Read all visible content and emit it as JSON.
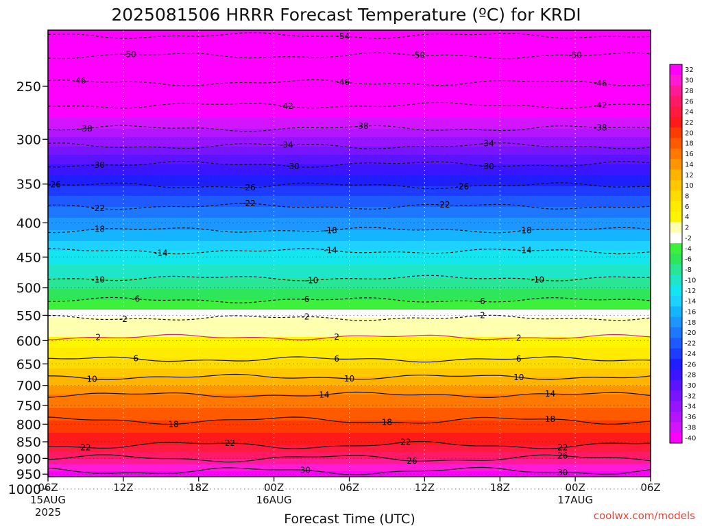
{
  "chart_data": {
    "type": "heatmap",
    "title": "2025081506 HRRR Forecast Temperature (ºC) for KRDI",
    "xlabel": "Forecast Time (UTC)",
    "credit": "coolwx.com/models",
    "x_ticks": [
      {
        "hour": 0,
        "label": "06Z",
        "sub": "15AUG",
        "sub2": "2025"
      },
      {
        "hour": 6,
        "label": "12Z",
        "sub": "",
        "sub2": ""
      },
      {
        "hour": 12,
        "label": "18Z",
        "sub": "",
        "sub2": ""
      },
      {
        "hour": 18,
        "label": "00Z",
        "sub": "16AUG",
        "sub2": ""
      },
      {
        "hour": 24,
        "label": "06Z",
        "sub": "",
        "sub2": ""
      },
      {
        "hour": 30,
        "label": "12Z",
        "sub": "",
        "sub2": ""
      },
      {
        "hour": 36,
        "label": "18Z",
        "sub": "",
        "sub2": ""
      },
      {
        "hour": 42,
        "label": "00Z",
        "sub": "17AUG",
        "sub2": ""
      },
      {
        "hour": 48,
        "label": "06Z",
        "sub": "",
        "sub2": ""
      }
    ],
    "x_range_hours": [
      0,
      48
    ],
    "y_axis": {
      "label": "",
      "scale": "log-pressure",
      "range_hpa": [
        1040,
        200
      ],
      "ticks": [
        250,
        300,
        350,
        400,
        450,
        500,
        550,
        600,
        650,
        700,
        750,
        800,
        850,
        900,
        950,
        1000
      ]
    },
    "ground_level_hpa": 970,
    "colorbar": {
      "levels": [
        32,
        30,
        28,
        26,
        24,
        22,
        20,
        18,
        16,
        14,
        12,
        10,
        8,
        6,
        4,
        2,
        -2,
        -4,
        -6,
        -8,
        -10,
        -12,
        -14,
        -16,
        -18,
        -20,
        -22,
        -24,
        -26,
        -28,
        -30,
        -32,
        -34,
        -36,
        -38,
        -40
      ],
      "colors": [
        "#ff00ff",
        "#ff1ad6",
        "#ff1a96",
        "#ff1a66",
        "#ff1a40",
        "#ff1a1a",
        "#ff3c00",
        "#ff5a00",
        "#ff7800",
        "#ff9600",
        "#ffb400",
        "#ffc800",
        "#ffdc00",
        "#ffeb00",
        "#fff500",
        "#ffffb0",
        "#ffffff",
        "#3cf03c",
        "#2ee65a",
        "#28e696",
        "#1ee6c8",
        "#14e6f0",
        "#1ed2ff",
        "#14b4ff",
        "#1e96ff",
        "#1e78ff",
        "#1e5aff",
        "#1e3cff",
        "#1e1eff",
        "#3c14ff",
        "#5a14ff",
        "#7814ff",
        "#9614ff",
        "#b414ff",
        "#d214ff",
        "#ff00ff"
      ]
    },
    "contours": [
      {
        "value": -54,
        "pressure_hpa": 210,
        "label_hours": [
          23.5
        ],
        "dashed": true
      },
      {
        "value": -50,
        "pressure_hpa": 225,
        "label_hours": [
          6.5,
          29.5,
          42.0
        ],
        "dashed": true
      },
      {
        "value": -46,
        "pressure_hpa": 247,
        "label_hours": [
          2.5,
          23.5,
          44.0
        ],
        "dashed": true
      },
      {
        "value": -42,
        "pressure_hpa": 267,
        "label_hours": [
          19.0,
          44.0
        ],
        "dashed": true
      },
      {
        "value": -38,
        "pressure_hpa": 289,
        "label_hours": [
          3.0,
          25.0,
          44.0
        ],
        "dashed": true
      },
      {
        "value": -34,
        "pressure_hpa": 307,
        "label_hours": [
          19.0,
          35.0
        ],
        "dashed": true
      },
      {
        "value": -30,
        "pressure_hpa": 327,
        "label_hours": [
          4.0,
          19.5,
          35.0
        ],
        "dashed": true
      },
      {
        "value": -26,
        "pressure_hpa": 352,
        "label_hours": [
          0.5,
          16.0,
          33.0
        ],
        "dashed": true
      },
      {
        "value": -22,
        "pressure_hpa": 378,
        "label_hours": [
          4.0,
          16.0,
          31.5
        ],
        "dashed": true
      },
      {
        "value": -18,
        "pressure_hpa": 410,
        "label_hours": [
          4.0,
          22.5,
          38.0
        ],
        "dashed": true
      },
      {
        "value": -14,
        "pressure_hpa": 441,
        "label_hours": [
          9.0,
          22.5,
          38.0
        ],
        "dashed": true
      },
      {
        "value": -10,
        "pressure_hpa": 484,
        "label_hours": [
          4.0,
          21.0,
          39.0
        ],
        "dashed": true
      },
      {
        "value": -6,
        "pressure_hpa": 522,
        "label_hours": [
          7.0,
          20.5,
          34.5
        ],
        "dashed": true
      },
      {
        "value": -2,
        "pressure_hpa": 555,
        "label_hours": [
          6.0,
          20.5,
          34.5
        ],
        "dashed": true
      },
      {
        "value": 2,
        "pressure_hpa": 593,
        "label_hours": [
          4.0,
          23.0,
          37.5
        ],
        "dashed": false
      },
      {
        "value": 6,
        "pressure_hpa": 640,
        "label_hours": [
          7.0,
          23.0,
          37.5
        ],
        "dashed": false
      },
      {
        "value": 10,
        "pressure_hpa": 680,
        "label_hours": [
          3.5,
          24.0,
          37.5
        ],
        "dashed": false
      },
      {
        "value": 14,
        "pressure_hpa": 723,
        "label_hours": [
          22.0,
          40.0
        ],
        "dashed": false
      },
      {
        "value": 18,
        "pressure_hpa": 790,
        "label_hours": [
          10.0,
          27.0,
          40.0
        ],
        "dashed": false
      },
      {
        "value": 22,
        "pressure_hpa": 860,
        "label_hours": [
          3.0,
          14.5,
          28.5,
          41.0
        ],
        "dashed": false
      },
      {
        "value": 26,
        "pressure_hpa": 900,
        "label_hours": [
          29.0,
          41.0
        ],
        "dashed": false
      },
      {
        "value": 30,
        "pressure_hpa": 940,
        "label_hours": [
          20.5,
          41.0
        ],
        "dashed": false
      }
    ]
  }
}
